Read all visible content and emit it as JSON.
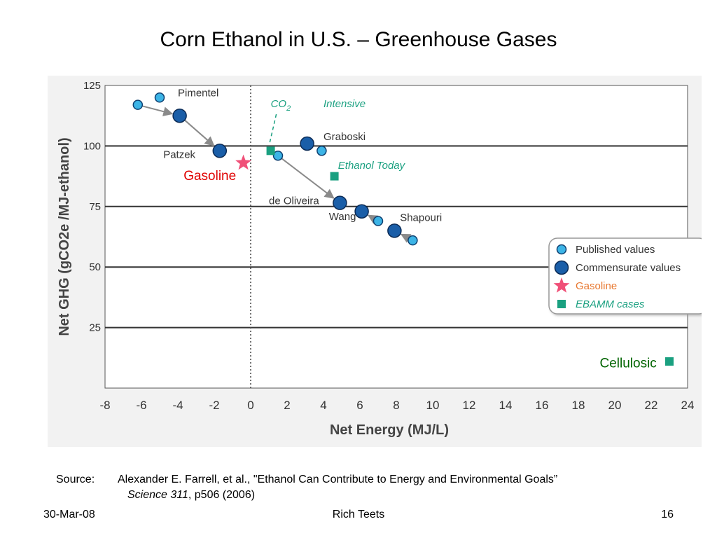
{
  "slide": {
    "title": "Corn Ethanol in U.S. – Greenhouse Gases",
    "source_label": "Source:",
    "source_text": "Alexander E. Farrell, et al., \"Ethanol Can Contribute to Energy and Environmental Goals”",
    "source_journal": "Science 311",
    "source_suffix": ", p506 (2006)",
    "footer_date": "30-Mar-08",
    "footer_author": "Rich Teets",
    "footer_page": "16"
  },
  "chart_data": {
    "type": "scatter",
    "xlabel": "Net Energy (MJ/L)",
    "ylabel": "Net GHG (gCO2e /MJ-ethanol)",
    "xlim": [
      -8,
      24
    ],
    "ylim": [
      0,
      125
    ],
    "x_ticks": [
      "-8",
      "-6",
      "-4",
      "-2",
      "0",
      "2",
      "4",
      "6",
      "8",
      "10",
      "12",
      "14",
      "16",
      "18",
      "20",
      "22",
      "24"
    ],
    "y_ticks": [
      "25",
      "50",
      "75",
      "100",
      "125"
    ],
    "grid": "horizontal",
    "reference_line_x": 0,
    "legend_position": "right",
    "legend": [
      {
        "label": "Published values",
        "marker": "small-circle",
        "color": "#3cb4e6"
      },
      {
        "label": "Commensurate values",
        "marker": "large-circle",
        "color": "#1a5ea8"
      },
      {
        "label": "Gasoline",
        "marker": "star",
        "color": "#f05078"
      },
      {
        "label": "EBAMM cases",
        "marker": "square",
        "color": "#1aa080"
      }
    ],
    "series": [
      {
        "name": "Published values",
        "points": [
          {
            "x": -6.2,
            "y": 117
          },
          {
            "x": -5.0,
            "y": 120
          },
          {
            "x": 1.5,
            "y": 96
          },
          {
            "x": 3.9,
            "y": 98
          },
          {
            "x": 7.0,
            "y": 69
          },
          {
            "x": 8.9,
            "y": 61
          }
        ]
      },
      {
        "name": "Commensurate values",
        "points": [
          {
            "x": -3.9,
            "y": 112.5
          },
          {
            "x": -1.7,
            "y": 98
          },
          {
            "x": 3.1,
            "y": 101
          },
          {
            "x": 4.9,
            "y": 76.5
          },
          {
            "x": 6.1,
            "y": 73
          },
          {
            "x": 7.9,
            "y": 65
          }
        ]
      },
      {
        "name": "Gasoline",
        "points": [
          {
            "x": -0.4,
            "y": 93
          }
        ]
      },
      {
        "name": "EBAMM cases",
        "points": [
          {
            "x": 1.1,
            "y": 98
          },
          {
            "x": 4.6,
            "y": 87.5
          },
          {
            "x": 23.0,
            "y": 11
          }
        ]
      }
    ],
    "arrows": [
      {
        "from": [
          -6.2,
          117
        ],
        "to": [
          -3.9,
          112.5
        ]
      },
      {
        "from": [
          -3.9,
          112.5
        ],
        "to": [
          -1.7,
          98
        ]
      },
      {
        "from": [
          1.5,
          96
        ],
        "to": [
          4.9,
          76.5
        ]
      },
      {
        "from": [
          7.0,
          69
        ],
        "to": [
          6.1,
          73
        ]
      },
      {
        "from": [
          8.9,
          61
        ],
        "to": [
          7.9,
          65
        ]
      }
    ],
    "point_labels": [
      {
        "text": "Pimentel",
        "x": -4.0,
        "y": 120.5,
        "color": "#333333"
      },
      {
        "text": "Patzek",
        "x": -4.8,
        "y": 95,
        "color": "#333333"
      },
      {
        "text": "Graboski",
        "x": 4.0,
        "y": 102.5,
        "color": "#333333"
      },
      {
        "text": "de Oliveira",
        "x": 1.0,
        "y": 76,
        "color": "#333333"
      },
      {
        "text": "Wang",
        "x": 4.3,
        "y": 69.5,
        "color": "#333333"
      },
      {
        "text": "Shapouri",
        "x": 8.2,
        "y": 69,
        "color": "#333333"
      }
    ],
    "annotations": [
      {
        "text": "Intensive",
        "x": 4.0,
        "y": 116,
        "color": "#1aa080",
        "italic": true
      },
      {
        "text": "Ethanol Today",
        "x": 4.8,
        "y": 90.5,
        "color": "#1aa080",
        "italic": true
      },
      {
        "text": "Gasoline",
        "x": -0.8,
        "y": 86,
        "color": "#e00000",
        "anchor": "end",
        "size": 19
      },
      {
        "text": "Cellulosic",
        "x": 22.3,
        "y": 8.5,
        "color": "#006400",
        "anchor": "end",
        "size": 19
      }
    ],
    "co2_label": {
      "base": "CO",
      "sub": "2",
      "x": 1.1,
      "y": 116,
      "color": "#1aa080"
    }
  }
}
